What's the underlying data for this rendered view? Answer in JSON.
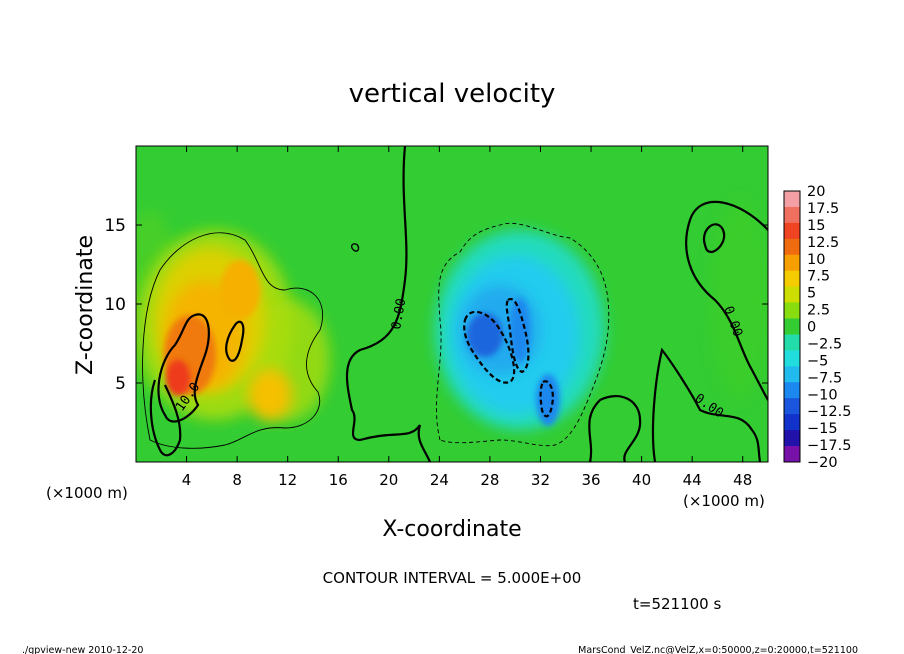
{
  "chart_data": {
    "type": "heatmap",
    "title": "vertical velocity",
    "xlabel": "X-coordinate",
    "ylabel": "Z-coordinate",
    "x_unit_left": "(×1000 m)",
    "x_unit_right": "(×1000 m)",
    "xlim": [
      0,
      50
    ],
    "ylim": [
      0,
      20
    ],
    "x_ticks": [
      4,
      8,
      12,
      16,
      20,
      24,
      28,
      32,
      36,
      40,
      44,
      48
    ],
    "y_ticks": [
      5,
      10,
      15
    ],
    "colorbar": {
      "levels": [
        "20",
        "17.5",
        "15",
        "12.5",
        "10",
        "7.5",
        "5",
        "2.5",
        "0",
        "-2.5",
        "-5",
        "-7.5",
        "-10",
        "-12.5",
        "-15",
        "-17.5",
        "-20"
      ],
      "colors": [
        "#f49fa4",
        "#f07060",
        "#ee4422",
        "#f06a10",
        "#f5a000",
        "#f5cc00",
        "#ccdd00",
        "#88dd10",
        "#33cc33",
        "#22ddaa",
        "#22dddd",
        "#22bbee",
        "#1a88ee",
        "#1a55dd",
        "#1133cc",
        "#2211aa",
        "#7711aa"
      ]
    },
    "contour_interval": "CONTOUR INTERVAL = 5.000E+00",
    "contour_labels": [
      "10.0",
      "0.00",
      "0.00",
      "0.00"
    ],
    "grid": false
  },
  "footer": {
    "time": "t=521100 s",
    "left": "./gpview-new  2010-12-20",
    "right": "MarsCond_VelZ.nc@VelZ,x=0:50000,z=0:20000,t=521100"
  }
}
